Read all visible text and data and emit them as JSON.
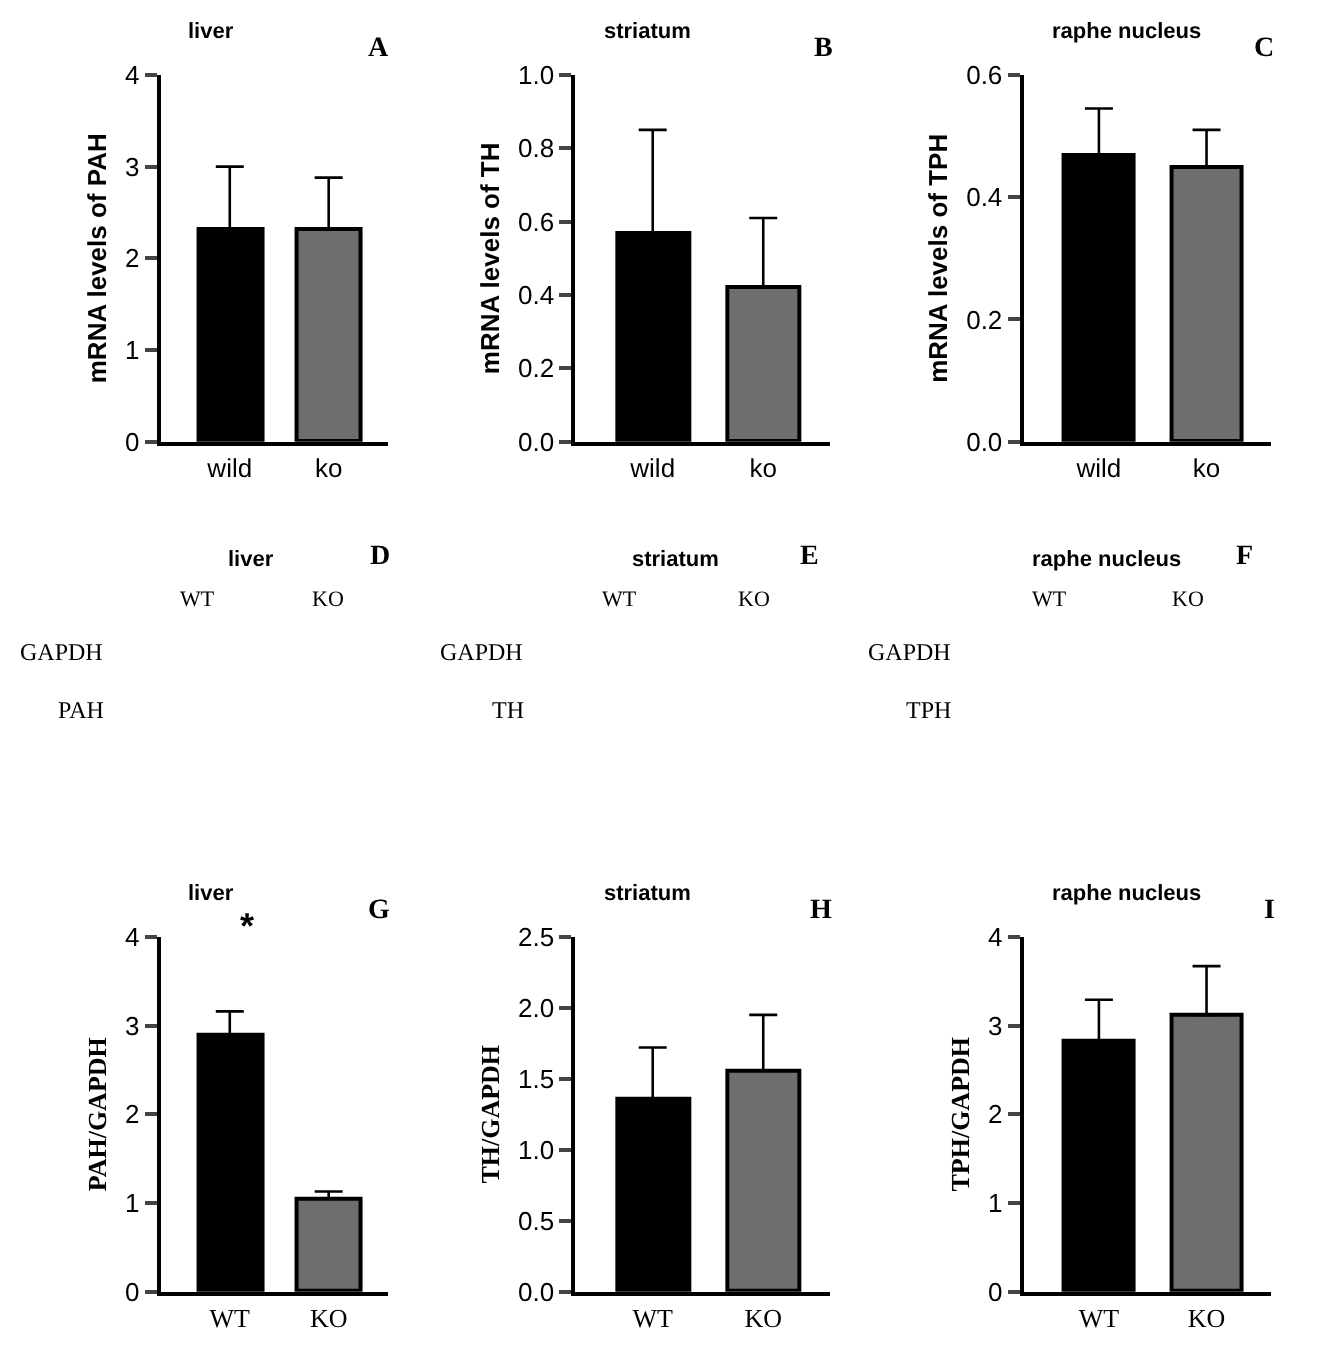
{
  "chart_data": [
    {
      "type": "bar",
      "title": "liver",
      "annotations": [
        "A"
      ],
      "ylabel": "mRNA levels of PAH",
      "categories": [
        "wild",
        "ko"
      ],
      "values": [
        2.32,
        2.32
      ],
      "colors": [
        "#000000",
        "#6e6e6e"
      ],
      "errors": [
        [
          2.32,
          3.0
        ],
        [
          2.32,
          2.88
        ]
      ],
      "ylim": [
        0,
        4
      ],
      "yticks": [
        0,
        1,
        2,
        3,
        4
      ]
    },
    {
      "type": "bar",
      "title": "striatum",
      "annotations": [
        "B"
      ],
      "ylabel": "mRNA levels of TH",
      "categories": [
        "wild",
        "ko"
      ],
      "values": [
        0.57,
        0.42
      ],
      "colors": [
        "#000000",
        "#6e6e6e"
      ],
      "errors": [
        [
          0.57,
          0.85
        ],
        [
          0.42,
          0.61
        ]
      ],
      "ylim": [
        0,
        1.0
      ],
      "yticks": [
        {
          "value": 0,
          "label": "0.0"
        },
        0.2,
        0.4,
        0.6,
        0.8,
        {
          "value": 1,
          "label": "1.0"
        }
      ]
    },
    {
      "type": "bar",
      "title": "raphe nucleus",
      "annotations": [
        "C"
      ],
      "ylabel": "mRNA levels of TPH",
      "categories": [
        "wild",
        "ko"
      ],
      "values": [
        0.47,
        0.45
      ],
      "colors": [
        "#000000",
        "#6e6e6e"
      ],
      "errors": [
        [
          0.47,
          0.545
        ],
        [
          0.45,
          0.51
        ]
      ],
      "ylim": [
        0,
        0.6
      ],
      "yticks": [
        {
          "value": 0,
          "label": "0.0"
        },
        0.2,
        0.4,
        0.6
      ]
    },
    {
      "type": "other",
      "title": "liver",
      "annotations": [
        "D",
        "WT",
        "KO",
        "GAPDH",
        "PAH"
      ]
    },
    {
      "type": "other",
      "title": "striatum",
      "annotations": [
        "E",
        "WT",
        "KO",
        "GAPDH",
        "TH"
      ]
    },
    {
      "type": "other",
      "title": "raphe nucleus",
      "annotations": [
        "F",
        "WT",
        "KO",
        "GAPDH",
        "TPH"
      ]
    },
    {
      "type": "bar",
      "title": "liver",
      "annotations": [
        "G",
        "*"
      ],
      "ylabel": "PAH/GAPDH",
      "categories": [
        "WT",
        "KO"
      ],
      "values": [
        2.9,
        1.05
      ],
      "colors": [
        "#000000",
        "#6e6e6e"
      ],
      "errors": [
        [
          2.9,
          3.16
        ],
        [
          1.05,
          1.13
        ]
      ],
      "ylim": [
        0,
        4
      ],
      "yticks": [
        0,
        1,
        2,
        3,
        4
      ]
    },
    {
      "type": "bar",
      "title": "striatum",
      "annotations": [
        "H"
      ],
      "ylabel": "TH/GAPDH",
      "categories": [
        "WT",
        "KO"
      ],
      "values": [
        1.36,
        1.56
      ],
      "colors": [
        "#000000",
        "#6e6e6e"
      ],
      "errors": [
        [
          1.36,
          1.72
        ],
        [
          1.56,
          1.95
        ]
      ],
      "ylim": [
        0,
        2.5
      ],
      "yticks": [
        {
          "value": 0,
          "label": "0.0"
        },
        0.5,
        {
          "value": 1,
          "label": "1.0"
        },
        1.5,
        {
          "value": 2,
          "label": "2.0"
        },
        2.5
      ]
    },
    {
      "type": "bar",
      "title": "raphe nucleus",
      "annotations": [
        "I"
      ],
      "ylabel": "TPH/GAPDH",
      "categories": [
        "WT",
        "KO"
      ],
      "values": [
        2.82,
        3.12
      ],
      "colors": [
        "#000000",
        "#6e6e6e"
      ],
      "errors": [
        [
          2.82,
          3.29
        ],
        [
          3.12,
          3.67
        ]
      ],
      "ylim": [
        0,
        4
      ],
      "yticks": [
        0,
        1,
        2,
        3,
        4
      ]
    }
  ]
}
